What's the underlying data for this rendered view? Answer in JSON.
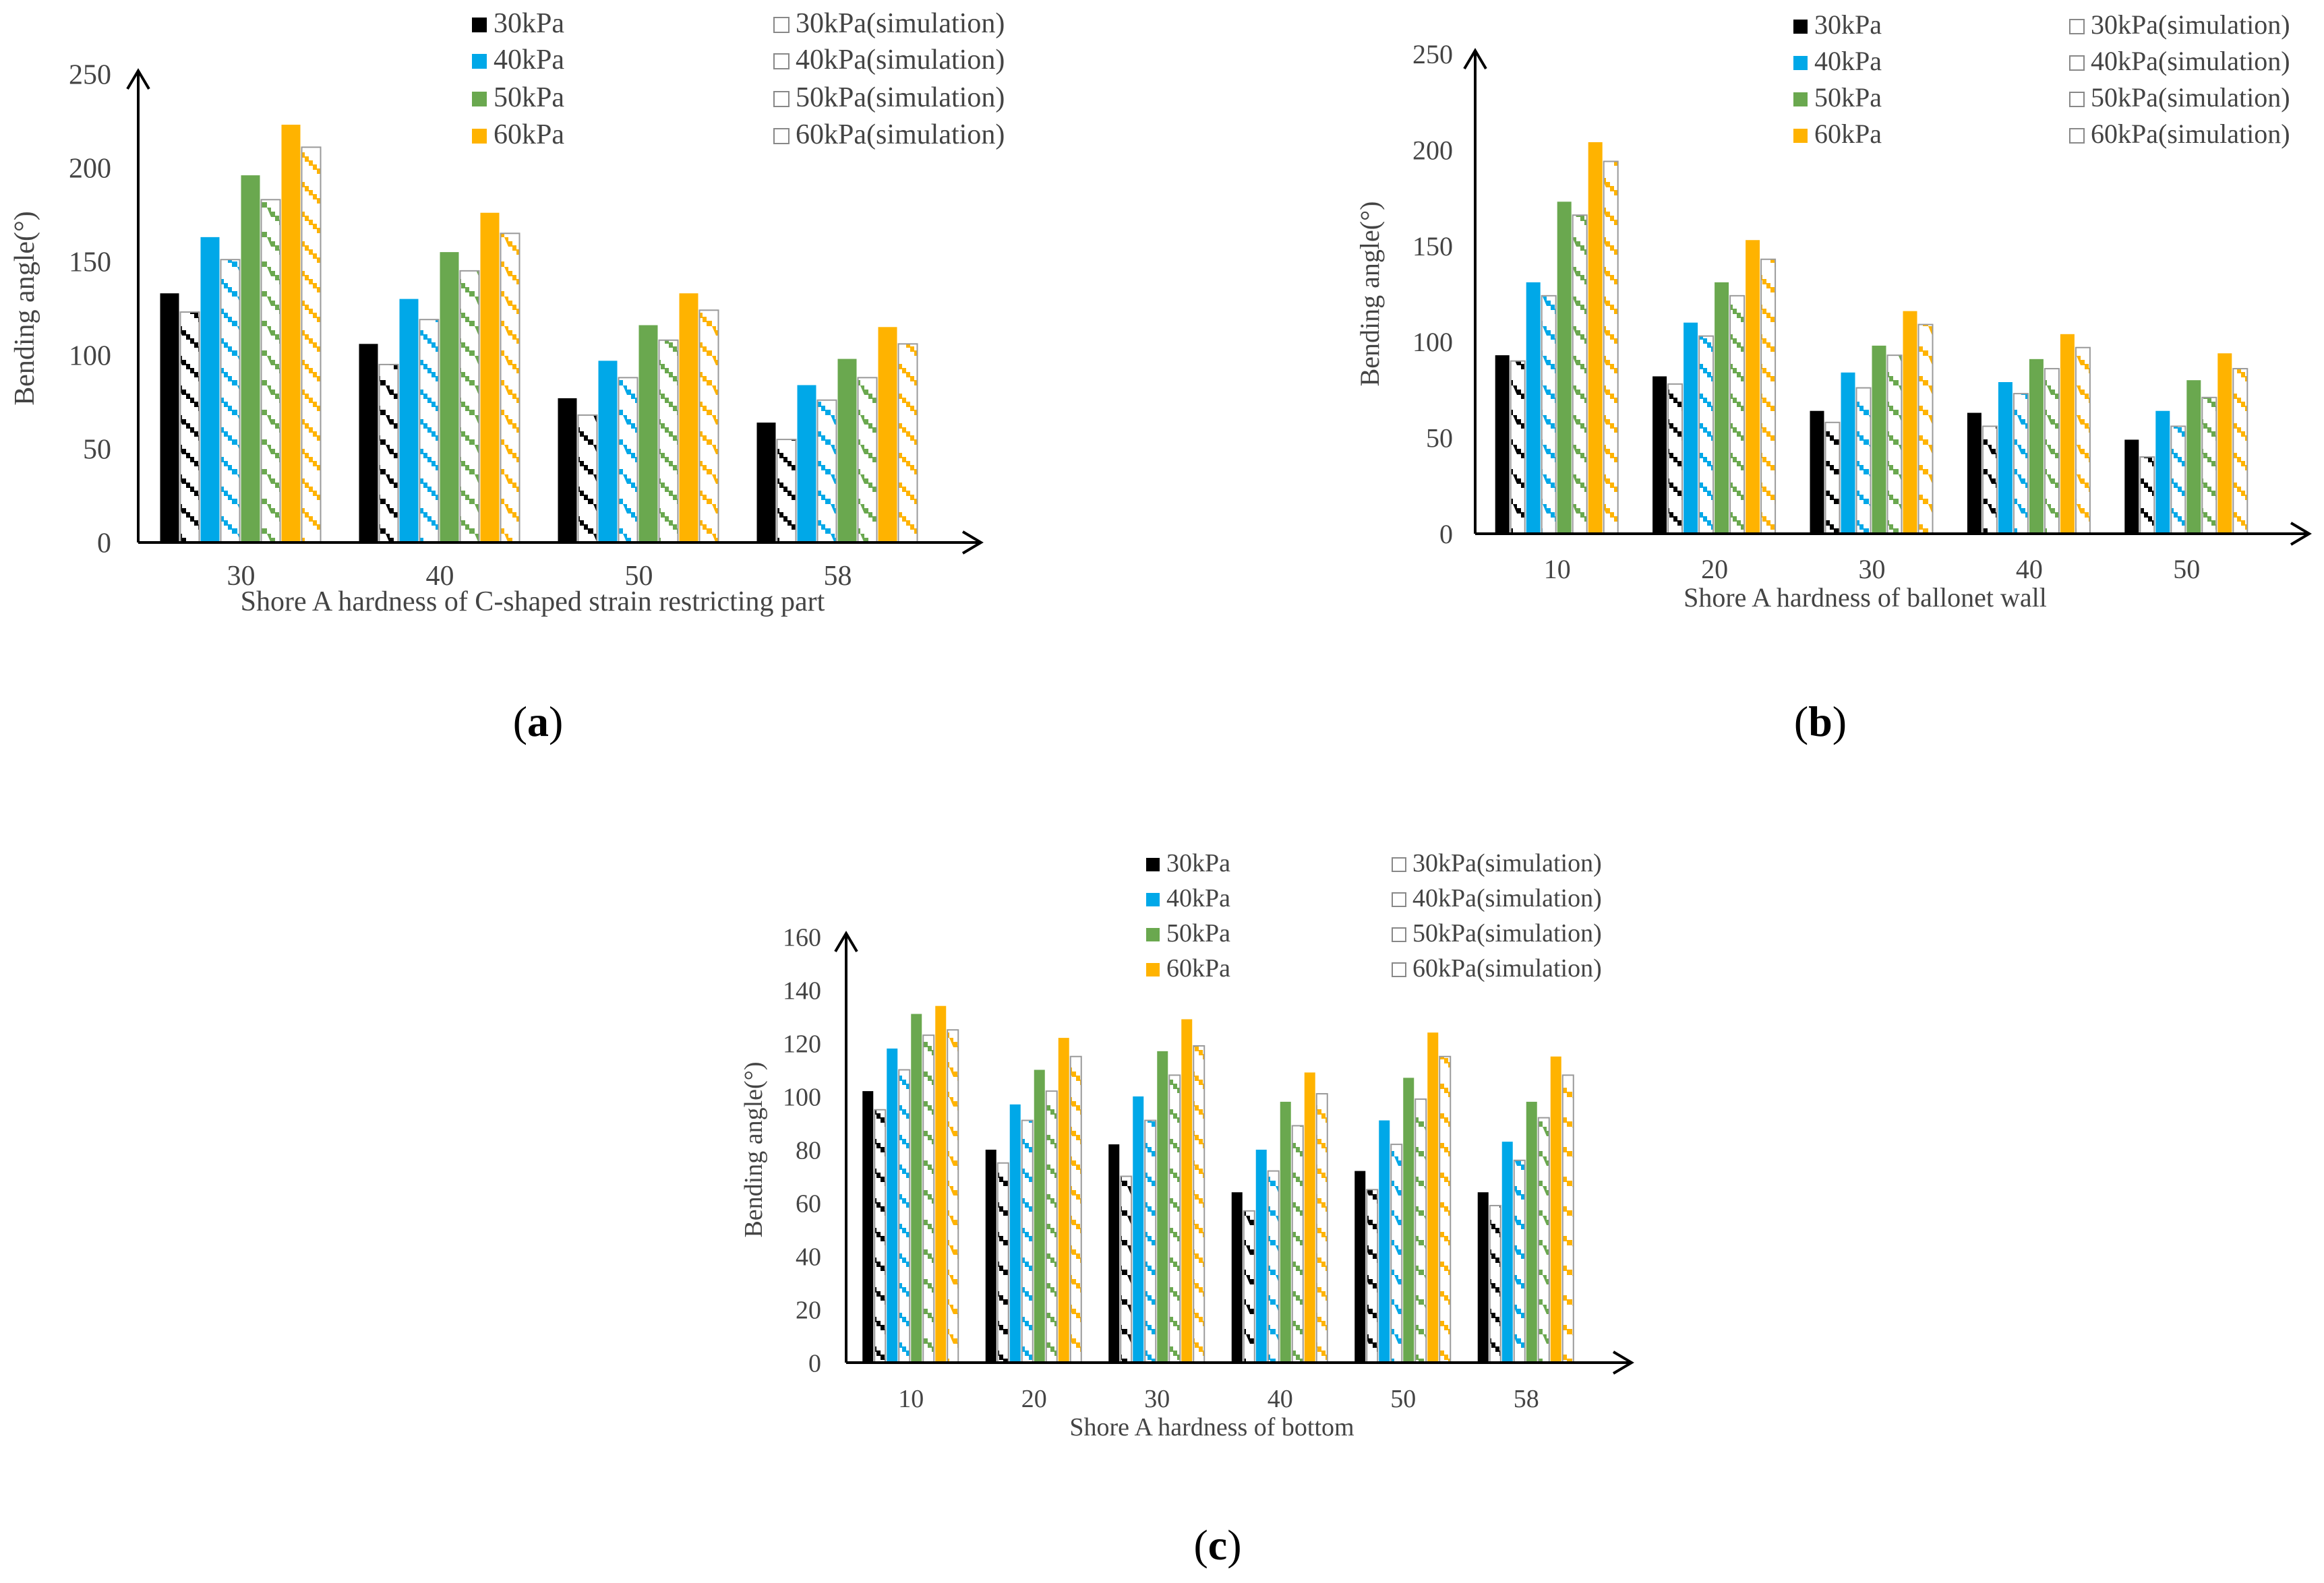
{
  "colors": {
    "s30": "#000000",
    "s40": "#00a8e8",
    "s50": "#6aa84f",
    "s60": "#ffb300",
    "axis": "#000000",
    "text": "#444444"
  },
  "chart_data": [
    {
      "type": "bar",
      "panel": "a",
      "ylabel": "Bending  angle(°)",
      "xlabel": "Shore A hardness of C-shaped strain restricting part",
      "ylim": [
        0,
        250
      ],
      "yticks": [
        "0",
        "50",
        "100",
        "150",
        "200",
        "250"
      ],
      "categories": [
        "30",
        "40",
        "50",
        "58"
      ],
      "series": [
        {
          "name": "30kPa",
          "values": [
            133,
            106,
            77,
            64
          ]
        },
        {
          "name": "30kPa(simulation)",
          "values": [
            123,
            95,
            68,
            55
          ]
        },
        {
          "name": "40kPa",
          "values": [
            163,
            130,
            97,
            84
          ]
        },
        {
          "name": "40kPa(simulation)",
          "values": [
            151,
            119,
            88,
            76
          ]
        },
        {
          "name": "50kPa",
          "values": [
            196,
            155,
            116,
            98
          ]
        },
        {
          "name": "50kPa(simulation)",
          "values": [
            183,
            145,
            108,
            88
          ]
        },
        {
          "name": "60kPa",
          "values": [
            223,
            176,
            133,
            115
          ]
        },
        {
          "name": "60kPa(simulation)",
          "values": [
            211,
            165,
            124,
            106
          ]
        }
      ]
    },
    {
      "type": "bar",
      "panel": "b",
      "ylabel": "Bending  angle(°)",
      "xlabel": "Shore A hardness of ballonet wall",
      "ylim": [
        0,
        250
      ],
      "yticks": [
        "0",
        "50",
        "100",
        "150",
        "200",
        "250"
      ],
      "categories": [
        "10",
        "20",
        "30",
        "40",
        "50"
      ],
      "series": [
        {
          "name": "30kPa",
          "values": [
            93,
            82,
            64,
            63,
            49
          ]
        },
        {
          "name": "30kPa(simulation)",
          "values": [
            90,
            78,
            58,
            56,
            40
          ]
        },
        {
          "name": "40kPa",
          "values": [
            131,
            110,
            84,
            79,
            64
          ]
        },
        {
          "name": "40kPa(simulation)",
          "values": [
            124,
            103,
            76,
            73,
            56
          ]
        },
        {
          "name": "50kPa",
          "values": [
            173,
            131,
            98,
            91,
            80
          ]
        },
        {
          "name": "50kPa(simulation)",
          "values": [
            166,
            124,
            93,
            86,
            71
          ]
        },
        {
          "name": "60kPa",
          "values": [
            204,
            153,
            116,
            104,
            94
          ]
        },
        {
          "name": "60kPa(simulation)",
          "values": [
            194,
            143,
            109,
            97,
            86
          ]
        }
      ]
    },
    {
      "type": "bar",
      "panel": "c",
      "ylabel": "Bending  angle(°)",
      "xlabel": "Shore A hardness of bottom",
      "ylim": [
        0,
        160
      ],
      "yticks": [
        "0",
        "20",
        "40",
        "60",
        "80",
        "100",
        "120",
        "140",
        "160"
      ],
      "categories": [
        "10",
        "20",
        "30",
        "40",
        "50",
        "58"
      ],
      "series": [
        {
          "name": "30kPa",
          "values": [
            102,
            80,
            82,
            64,
            72,
            64
          ]
        },
        {
          "name": "30kPa(simulation)",
          "values": [
            95,
            75,
            70,
            57,
            65,
            59
          ]
        },
        {
          "name": "40kPa",
          "values": [
            118,
            97,
            100,
            80,
            91,
            83
          ]
        },
        {
          "name": "40kPa(simulation)",
          "values": [
            110,
            91,
            91,
            72,
            82,
            76
          ]
        },
        {
          "name": "50kPa",
          "values": [
            131,
            110,
            117,
            98,
            107,
            98
          ]
        },
        {
          "name": "50kPa(simulation)",
          "values": [
            123,
            102,
            108,
            89,
            99,
            92
          ]
        },
        {
          "name": "60kPa",
          "values": [
            134,
            122,
            129,
            109,
            124,
            115
          ]
        },
        {
          "name": "60kPa(simulation)",
          "values": [
            125,
            115,
            119,
            101,
            115,
            108
          ]
        }
      ]
    }
  ],
  "panel_labels": [
    "a",
    "b",
    "c"
  ]
}
